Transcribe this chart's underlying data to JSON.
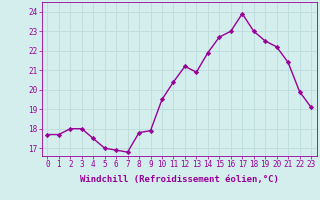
{
  "x": [
    0,
    1,
    2,
    3,
    4,
    5,
    6,
    7,
    8,
    9,
    10,
    11,
    12,
    13,
    14,
    15,
    16,
    17,
    18,
    19,
    20,
    21,
    22,
    23
  ],
  "y": [
    17.7,
    17.7,
    18.0,
    18.0,
    17.5,
    17.0,
    16.9,
    16.8,
    17.8,
    17.9,
    19.5,
    20.4,
    21.2,
    20.9,
    21.9,
    22.7,
    23.0,
    23.9,
    23.0,
    22.5,
    22.2,
    21.4,
    19.9,
    19.1
  ],
  "line_color": "#990099",
  "marker": "D",
  "marker_size": 2.2,
  "bg_color": "#d4eeee",
  "grid_color": "#c0dede",
  "xlabel": "Windchill (Refroidissement éolien,°C)",
  "ylabel_ticks": [
    17,
    18,
    19,
    20,
    21,
    22,
    23,
    24
  ],
  "xlim": [
    -0.5,
    23.5
  ],
  "ylim": [
    16.6,
    24.5
  ],
  "xticks": [
    0,
    1,
    2,
    3,
    4,
    5,
    6,
    7,
    8,
    9,
    10,
    11,
    12,
    13,
    14,
    15,
    16,
    17,
    18,
    19,
    20,
    21,
    22,
    23
  ],
  "tick_color": "#990099",
  "label_color": "#990099",
  "line_width": 1.0,
  "tick_fontsize": 5.5,
  "xlabel_fontsize": 6.5
}
